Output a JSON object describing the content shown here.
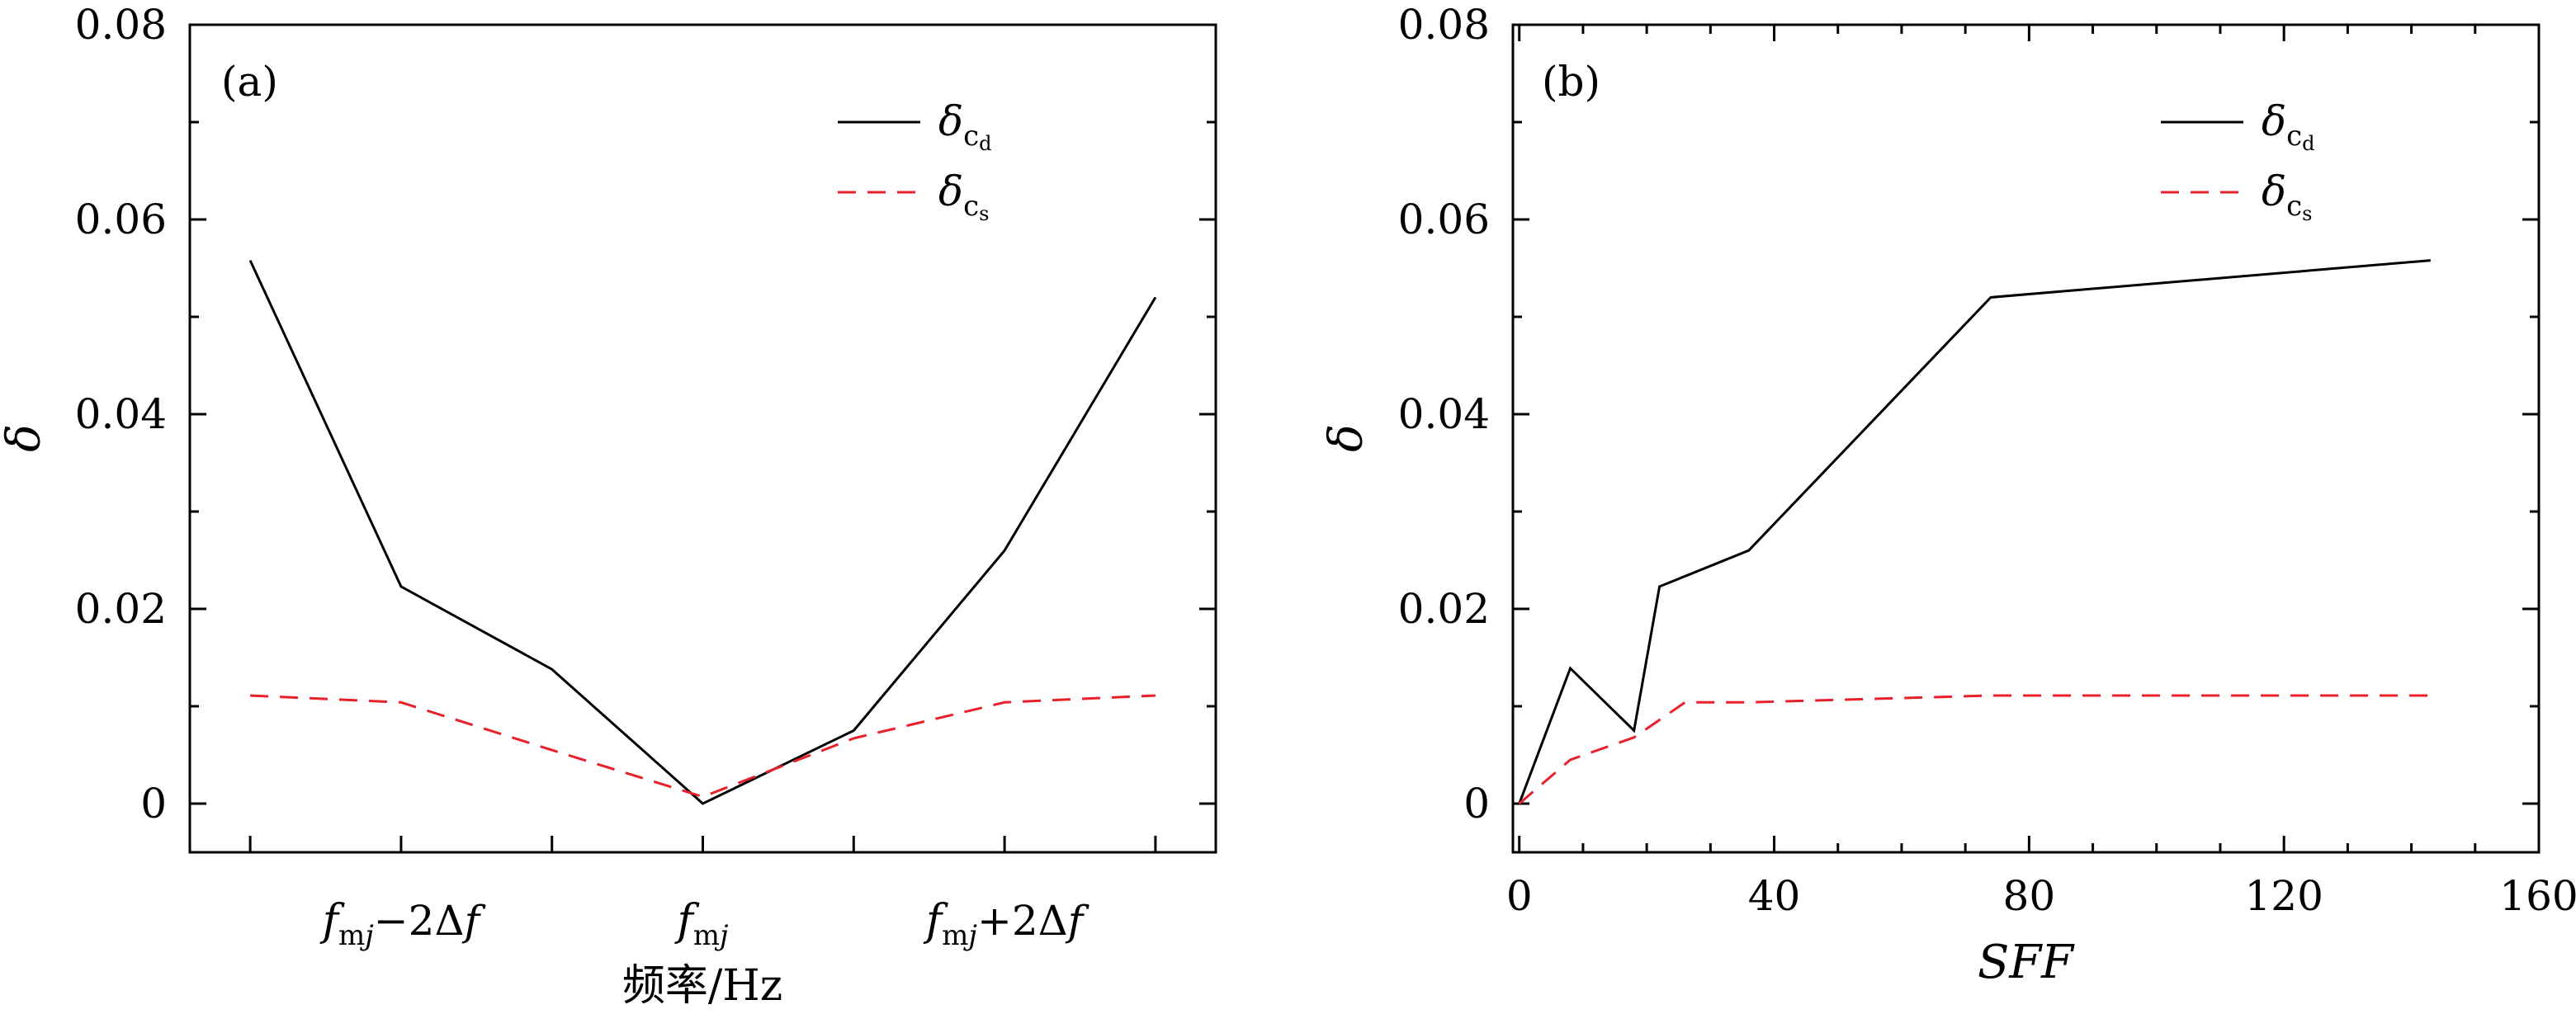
{
  "chart_data": [
    {
      "type": "line",
      "panel_label": "(a)",
      "xlabel": "频率/Hz",
      "ylabel": "δ",
      "x": [
        -3,
        -2,
        -1,
        0,
        1,
        2,
        3
      ],
      "xlim": [
        -3.4,
        3.4
      ],
      "ylim": [
        -0.005,
        0.08
      ],
      "yticks": [
        0,
        0.02,
        0.04,
        0.06,
        0.08
      ],
      "ytick_labels": [
        "0",
        "0.02",
        "0.04",
        "0.06",
        "0.08"
      ],
      "xticks_labeled": [
        {
          "x": -2,
          "label": "fmj−2Δf"
        },
        {
          "x": 0,
          "label": "fmj"
        },
        {
          "x": 2,
          "label": "fmj+2Δf"
        }
      ],
      "xticks_minor": [
        -3,
        -1,
        1,
        3
      ],
      "legend_placement": "top-right",
      "series": [
        {
          "name": "δcd",
          "style": "solid",
          "color": "#000000",
          "values": [
            0.0558,
            0.0223,
            0.0138,
            0.0,
            0.0075,
            0.026,
            0.052
          ]
        },
        {
          "name": "δcs",
          "style": "dashed",
          "color": "#e8202a",
          "values": [
            0.0111,
            0.0104,
            0.0055,
            0.0007,
            0.0067,
            0.0104,
            0.0111
          ]
        }
      ]
    },
    {
      "type": "line",
      "panel_label": "(b)",
      "xlabel": "SFF",
      "ylabel": "δ",
      "xlim": [
        -1,
        160
      ],
      "ylim": [
        -0.005,
        0.08
      ],
      "xticks": [
        0,
        40,
        80,
        120,
        160
      ],
      "xtick_labels": [
        "0",
        "40",
        "80",
        "120",
        "160"
      ],
      "yticks": [
        0,
        0.02,
        0.04,
        0.06,
        0.08
      ],
      "ytick_labels": [
        "0",
        "0.02",
        "0.04",
        "0.06",
        "0.08"
      ],
      "legend_placement": "top-right",
      "series": [
        {
          "name": "δcd",
          "style": "solid",
          "color": "#000000",
          "x": [
            0,
            8,
            18,
            22,
            36,
            74,
            143
          ],
          "values": [
            0.0,
            0.0139,
            0.0075,
            0.0223,
            0.026,
            0.052,
            0.0558
          ]
        },
        {
          "name": "δcs",
          "style": "dashed",
          "color": "#e8202a",
          "x": [
            0,
            8,
            18,
            26,
            36,
            74,
            143
          ],
          "values": [
            0.0,
            0.0045,
            0.0068,
            0.0104,
            0.0104,
            0.0111,
            0.0111
          ]
        }
      ]
    }
  ]
}
